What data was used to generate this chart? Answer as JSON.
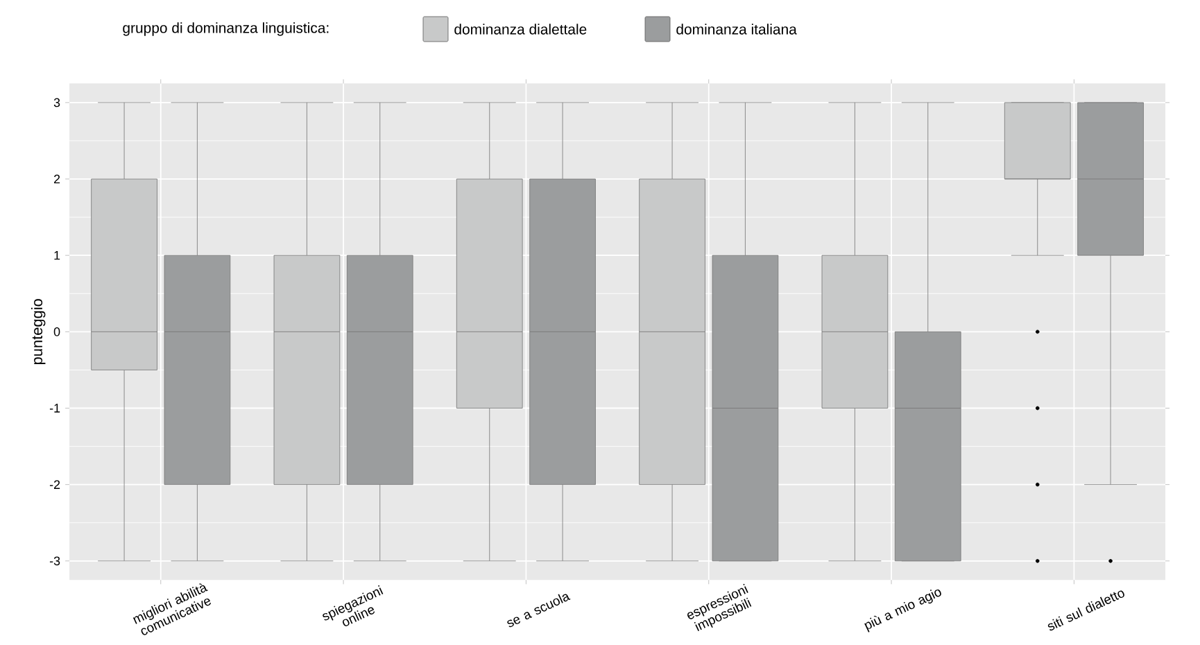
{
  "chart_data": {
    "type": "box",
    "ylabel": "punteggio",
    "legend_title": "gruppo di dominanza linguistica:",
    "categories": [
      "migliori abilità comunicative",
      "spiegazioni online",
      "se a scuola",
      "espressioni impossibili",
      "più a mio agio",
      "siti sul dialetto"
    ],
    "series": [
      {
        "name": "dominanza dialettale",
        "color": "#c8c9c9",
        "boxes": [
          {
            "low": -3,
            "q1": -0.5,
            "median": 0,
            "q3": 2,
            "high": 3
          },
          {
            "low": -3,
            "q1": -2,
            "median": 0,
            "q3": 1,
            "high": 3
          },
          {
            "low": -3,
            "q1": -1,
            "median": 0,
            "q3": 2,
            "high": 3
          },
          {
            "low": -3,
            "q1": -2,
            "median": 0,
            "q3": 2,
            "high": 3
          },
          {
            "low": -3,
            "q1": -1,
            "median": 0,
            "q3": 1,
            "high": 3
          },
          {
            "low": 1,
            "q1": 2,
            "median": 2,
            "q3": 3,
            "high": 3,
            "outliers": [
              0,
              -1,
              -2,
              -3
            ]
          }
        ]
      },
      {
        "name": "dominanza italiana",
        "color": "#9b9d9e",
        "boxes": [
          {
            "low": -3,
            "q1": -2,
            "median": 0,
            "q3": 1,
            "high": 3
          },
          {
            "low": -3,
            "q1": -2,
            "median": 0,
            "q3": 1,
            "high": 3
          },
          {
            "low": -3,
            "q1": -2,
            "median": 0,
            "q3": 2,
            "high": 3
          },
          {
            "low": -3,
            "q1": -3,
            "median": -1,
            "q3": 1,
            "high": 3
          },
          {
            "low": -3,
            "q1": -3,
            "median": -1,
            "q3": 0,
            "high": 3
          },
          {
            "low": -2,
            "q1": 1,
            "median": 2,
            "q3": 3,
            "high": 3,
            "outliers": [
              -3
            ]
          }
        ]
      }
    ],
    "ylim": [
      -3.25,
      3.25
    ],
    "yticks": [
      -3,
      -2,
      -1,
      0,
      1,
      2,
      3
    ],
    "grid": true,
    "legend": "top"
  }
}
